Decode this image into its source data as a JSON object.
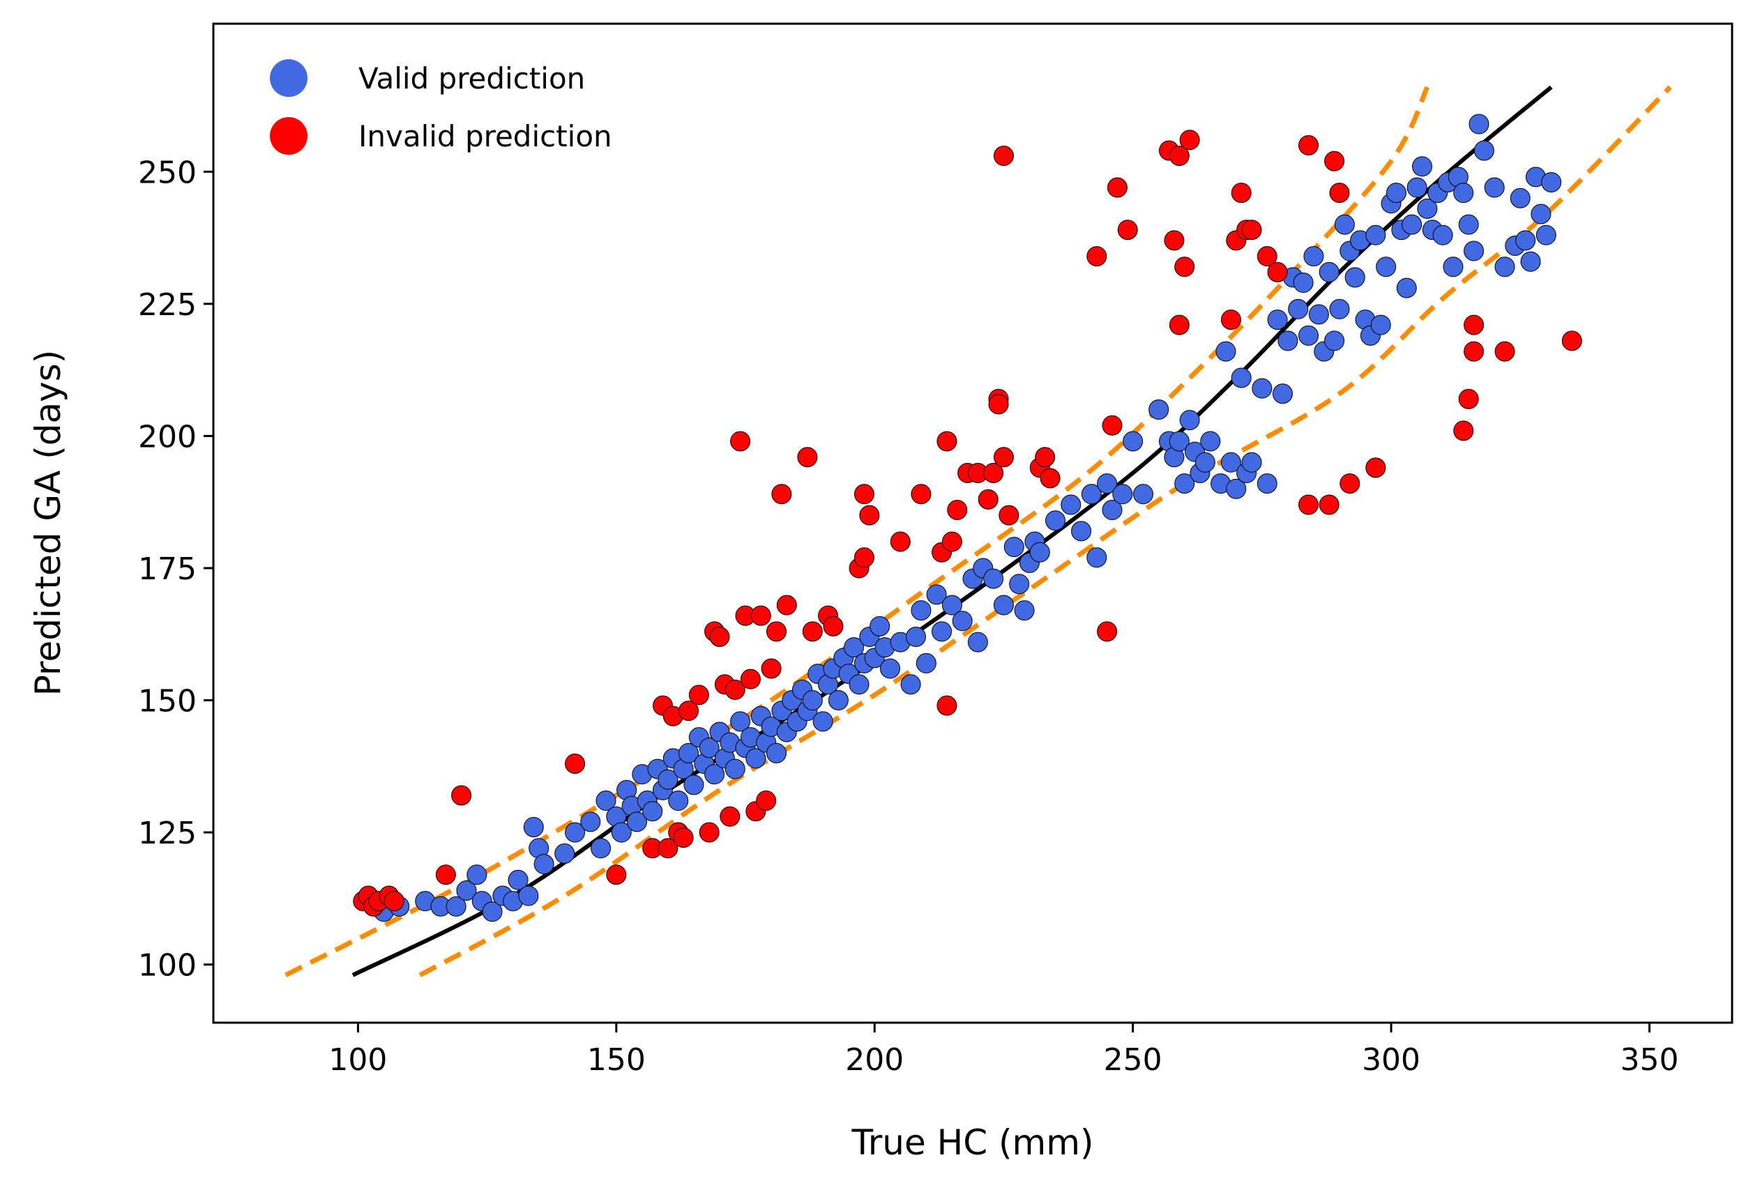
{
  "chart_data": {
    "type": "scatter",
    "title": "",
    "xlabel": "True HC (mm)",
    "ylabel": "Predicted GA (days)",
    "xlim": [
      72,
      366
    ],
    "ylim": [
      89,
      278
    ],
    "xticks": [
      100,
      150,
      200,
      250,
      300,
      350
    ],
    "yticks": [
      100,
      125,
      150,
      175,
      200,
      225,
      250
    ],
    "grid": false,
    "legend": {
      "placement": "top-left",
      "entries": [
        {
          "label": "Valid prediction",
          "color": "#4169e1"
        },
        {
          "label": "Invalid prediction",
          "color": "#ff0000"
        }
      ]
    },
    "series": [
      {
        "name": "Valid prediction",
        "color": "#4169e1",
        "points": [
          [
            105,
            110
          ],
          [
            108,
            111
          ],
          [
            113,
            112
          ],
          [
            116,
            111
          ],
          [
            119,
            111
          ],
          [
            121,
            114
          ],
          [
            123,
            117
          ],
          [
            124,
            112
          ],
          [
            126,
            110
          ],
          [
            128,
            113
          ],
          [
            130,
            112
          ],
          [
            131,
            116
          ],
          [
            133,
            113
          ],
          [
            134,
            126
          ],
          [
            135,
            122
          ],
          [
            136,
            119
          ],
          [
            140,
            121
          ],
          [
            142,
            125
          ],
          [
            145,
            127
          ],
          [
            147,
            122
          ],
          [
            148,
            131
          ],
          [
            150,
            128
          ],
          [
            151,
            125
          ],
          [
            152,
            133
          ],
          [
            153,
            130
          ],
          [
            154,
            127
          ],
          [
            155,
            136
          ],
          [
            156,
            131
          ],
          [
            157,
            129
          ],
          [
            158,
            137
          ],
          [
            159,
            133
          ],
          [
            160,
            135
          ],
          [
            161,
            139
          ],
          [
            162,
            131
          ],
          [
            163,
            137
          ],
          [
            164,
            140
          ],
          [
            165,
            134
          ],
          [
            166,
            143
          ],
          [
            167,
            138
          ],
          [
            168,
            141
          ],
          [
            169,
            136
          ],
          [
            170,
            144
          ],
          [
            171,
            139
          ],
          [
            172,
            142
          ],
          [
            173,
            137
          ],
          [
            174,
            146
          ],
          [
            175,
            141
          ],
          [
            176,
            143
          ],
          [
            177,
            139
          ],
          [
            178,
            147
          ],
          [
            179,
            142
          ],
          [
            180,
            145
          ],
          [
            181,
            140
          ],
          [
            182,
            148
          ],
          [
            183,
            144
          ],
          [
            184,
            150
          ],
          [
            185,
            146
          ],
          [
            186,
            152
          ],
          [
            187,
            148
          ],
          [
            188,
            150
          ],
          [
            189,
            155
          ],
          [
            190,
            146
          ],
          [
            191,
            153
          ],
          [
            192,
            156
          ],
          [
            193,
            150
          ],
          [
            194,
            158
          ],
          [
            195,
            155
          ],
          [
            196,
            160
          ],
          [
            197,
            153
          ],
          [
            198,
            157
          ],
          [
            199,
            162
          ],
          [
            200,
            158
          ],
          [
            201,
            164
          ],
          [
            202,
            160
          ],
          [
            203,
            156
          ],
          [
            205,
            161
          ],
          [
            207,
            153
          ],
          [
            208,
            162
          ],
          [
            209,
            167
          ],
          [
            210,
            157
          ],
          [
            212,
            170
          ],
          [
            213,
            163
          ],
          [
            215,
            168
          ],
          [
            217,
            165
          ],
          [
            219,
            173
          ],
          [
            220,
            161
          ],
          [
            221,
            175
          ],
          [
            223,
            173
          ],
          [
            225,
            168
          ],
          [
            227,
            179
          ],
          [
            228,
            172
          ],
          [
            229,
            167
          ],
          [
            230,
            176
          ],
          [
            231,
            180
          ],
          [
            232,
            178
          ],
          [
            235,
            184
          ],
          [
            238,
            187
          ],
          [
            240,
            182
          ],
          [
            242,
            189
          ],
          [
            243,
            177
          ],
          [
            245,
            191
          ],
          [
            246,
            186
          ],
          [
            248,
            189
          ],
          [
            250,
            199
          ],
          [
            252,
            189
          ],
          [
            255,
            205
          ],
          [
            257,
            199
          ],
          [
            258,
            196
          ],
          [
            259,
            199
          ],
          [
            260,
            191
          ],
          [
            261,
            203
          ],
          [
            262,
            197
          ],
          [
            263,
            193
          ],
          [
            264,
            195
          ],
          [
            265,
            199
          ],
          [
            267,
            191
          ],
          [
            268,
            216
          ],
          [
            269,
            195
          ],
          [
            270,
            190
          ],
          [
            271,
            211
          ],
          [
            272,
            193
          ],
          [
            273,
            195
          ],
          [
            275,
            209
          ],
          [
            276,
            191
          ],
          [
            278,
            222
          ],
          [
            279,
            208
          ],
          [
            280,
            218
          ],
          [
            281,
            230
          ],
          [
            282,
            224
          ],
          [
            283,
            229
          ],
          [
            284,
            219
          ],
          [
            285,
            234
          ],
          [
            286,
            223
          ],
          [
            287,
            216
          ],
          [
            288,
            231
          ],
          [
            289,
            218
          ],
          [
            290,
            224
          ],
          [
            291,
            240
          ],
          [
            292,
            235
          ],
          [
            293,
            230
          ],
          [
            294,
            237
          ],
          [
            295,
            222
          ],
          [
            296,
            219
          ],
          [
            297,
            238
          ],
          [
            298,
            221
          ],
          [
            299,
            232
          ],
          [
            300,
            244
          ],
          [
            301,
            246
          ],
          [
            302,
            239
          ],
          [
            303,
            228
          ],
          [
            304,
            240
          ],
          [
            305,
            247
          ],
          [
            306,
            251
          ],
          [
            307,
            243
          ],
          [
            308,
            239
          ],
          [
            309,
            246
          ],
          [
            310,
            238
          ],
          [
            311,
            248
          ],
          [
            312,
            232
          ],
          [
            313,
            249
          ],
          [
            314,
            246
          ],
          [
            315,
            240
          ],
          [
            316,
            235
          ],
          [
            317,
            259
          ],
          [
            318,
            254
          ],
          [
            320,
            247
          ],
          [
            322,
            232
          ],
          [
            324,
            236
          ],
          [
            325,
            245
          ],
          [
            326,
            237
          ],
          [
            327,
            233
          ],
          [
            328,
            249
          ],
          [
            329,
            242
          ],
          [
            330,
            238
          ],
          [
            331,
            248
          ]
        ]
      },
      {
        "name": "Invalid prediction",
        "color": "#ff0000",
        "points": [
          [
            101,
            112
          ],
          [
            102,
            113
          ],
          [
            103,
            111
          ],
          [
            104,
            112
          ],
          [
            106,
            113
          ],
          [
            107,
            112
          ],
          [
            117,
            117
          ],
          [
            120,
            132
          ],
          [
            142,
            138
          ],
          [
            150,
            117
          ],
          [
            157,
            122
          ],
          [
            159,
            149
          ],
          [
            160,
            122
          ],
          [
            161,
            147
          ],
          [
            162,
            125
          ],
          [
            163,
            124
          ],
          [
            164,
            148
          ],
          [
            166,
            151
          ],
          [
            168,
            125
          ],
          [
            169,
            163
          ],
          [
            170,
            162
          ],
          [
            171,
            153
          ],
          [
            172,
            128
          ],
          [
            173,
            152
          ],
          [
            174,
            199
          ],
          [
            175,
            166
          ],
          [
            176,
            154
          ],
          [
            177,
            129
          ],
          [
            178,
            166
          ],
          [
            179,
            131
          ],
          [
            180,
            156
          ],
          [
            181,
            163
          ],
          [
            182,
            189
          ],
          [
            183,
            168
          ],
          [
            187,
            196
          ],
          [
            188,
            163
          ],
          [
            191,
            166
          ],
          [
            192,
            164
          ],
          [
            197,
            175
          ],
          [
            198,
            177
          ],
          [
            198,
            189
          ],
          [
            199,
            185
          ],
          [
            205,
            180
          ],
          [
            209,
            189
          ],
          [
            213,
            178
          ],
          [
            214,
            199
          ],
          [
            214,
            149
          ],
          [
            215,
            180
          ],
          [
            216,
            186
          ],
          [
            218,
            193
          ],
          [
            220,
            193
          ],
          [
            222,
            188
          ],
          [
            223,
            193
          ],
          [
            224,
            207
          ],
          [
            224,
            206
          ],
          [
            225,
            253
          ],
          [
            225,
            196
          ],
          [
            226,
            185
          ],
          [
            232,
            194
          ],
          [
            233,
            196
          ],
          [
            234,
            192
          ],
          [
            243,
            234
          ],
          [
            245,
            163
          ],
          [
            246,
            202
          ],
          [
            247,
            247
          ],
          [
            249,
            239
          ],
          [
            257,
            254
          ],
          [
            258,
            237
          ],
          [
            259,
            253
          ],
          [
            259,
            221
          ],
          [
            260,
            232
          ],
          [
            261,
            256
          ],
          [
            269,
            222
          ],
          [
            270,
            237
          ],
          [
            271,
            246
          ],
          [
            272,
            239
          ],
          [
            273,
            239
          ],
          [
            276,
            234
          ],
          [
            278,
            231
          ],
          [
            284,
            187
          ],
          [
            284,
            255
          ],
          [
            288,
            187
          ],
          [
            289,
            252
          ],
          [
            290,
            246
          ],
          [
            292,
            191
          ],
          [
            297,
            194
          ],
          [
            314,
            201
          ],
          [
            315,
            207
          ],
          [
            316,
            221
          ],
          [
            316,
            216
          ],
          [
            322,
            216
          ],
          [
            335,
            218
          ]
        ]
      }
    ],
    "fit_curve": {
      "style": "solid",
      "color": "#000000",
      "points": [
        [
          99,
          98
        ],
        [
          130,
          113
        ],
        [
          160,
          133
        ],
        [
          190,
          151
        ],
        [
          220,
          171
        ],
        [
          250,
          193
        ],
        [
          270,
          211
        ],
        [
          290,
          231
        ],
        [
          310,
          249
        ],
        [
          331,
          266
        ]
      ]
    },
    "bound_curves": [
      {
        "style": "dashed",
        "color": "#ff8c00",
        "points": [
          [
            86,
            98
          ],
          [
            120,
            115
          ],
          [
            150,
            132
          ],
          [
            180,
            150
          ],
          [
            210,
            171
          ],
          [
            240,
            192
          ],
          [
            260,
            210
          ],
          [
            280,
            230
          ],
          [
            300,
            252
          ],
          [
            307,
            266
          ]
        ]
      },
      {
        "style": "dashed",
        "color": "#ff8c00",
        "points": [
          [
            112,
            98
          ],
          [
            140,
            113
          ],
          [
            170,
            133
          ],
          [
            200,
            151
          ],
          [
            230,
            171
          ],
          [
            260,
            191
          ],
          [
            290,
            208
          ],
          [
            310,
            226
          ],
          [
            330,
            242
          ],
          [
            354,
            266
          ]
        ]
      }
    ]
  }
}
